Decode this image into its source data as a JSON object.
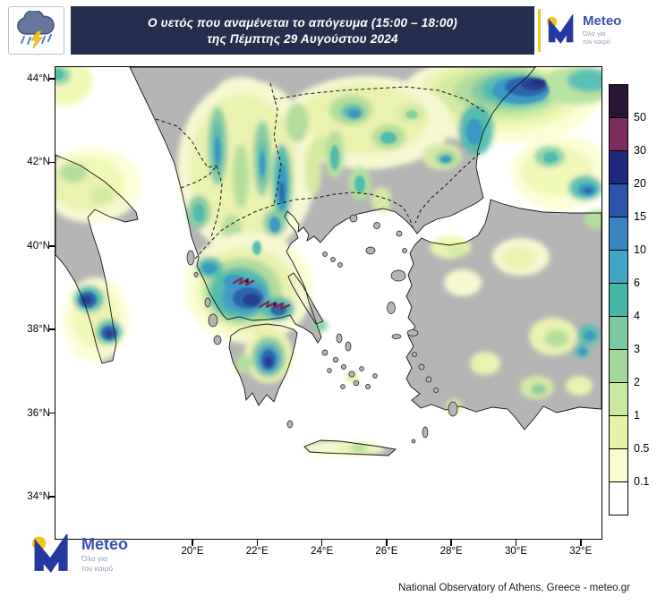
{
  "header": {
    "title_line1": "Ο υετός που αναμένεται το απόγευμα (15:00 – 18:00)",
    "title_line2": "της Πέμπτης 29 Αυγούστου 2024"
  },
  "brand": {
    "name": "Meteo",
    "tagline_line1": "Όλα για",
    "tagline_line2": "τον καιρό"
  },
  "map": {
    "lat_labels": [
      "44°N",
      "42°N",
      "40°N",
      "38°N",
      "36°N",
      "34°N"
    ],
    "lon_labels": [
      "20°E",
      "22°E",
      "24°E",
      "26°E",
      "28°E",
      "30°E",
      "32°E"
    ]
  },
  "colorbar": {
    "tick_labels": [
      "50",
      "30",
      "20",
      "15",
      "10",
      "6",
      "4",
      "3",
      "2",
      "1",
      "0.5",
      "0.1"
    ],
    "cell_colors_top_to_bottom": [
      "#2b1537",
      "#7c2d5e",
      "#202a7c",
      "#2a55a8",
      "#3a85c0",
      "#41a6c4",
      "#45b6a8",
      "#79c89e",
      "#a3d898",
      "#c9e9a0",
      "#e7f4a8",
      "#f9fccf",
      "#ffffff"
    ]
  },
  "footer": {
    "credit": "National Observatory of Athens, Greece - meteo.gr"
  }
}
